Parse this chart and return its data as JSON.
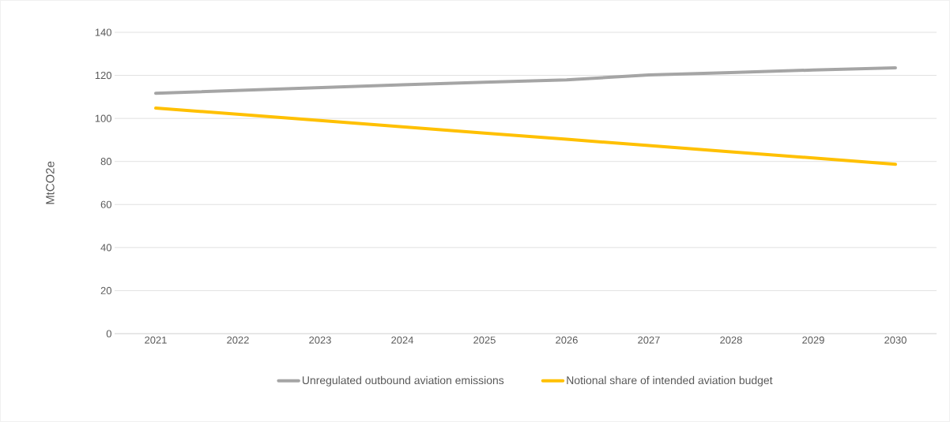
{
  "chart_data": {
    "type": "line",
    "ylabel": "MtCO2e",
    "categories": [
      "2021",
      "2022",
      "2023",
      "2024",
      "2025",
      "2026",
      "2027",
      "2028",
      "2029",
      "2030"
    ],
    "series": [
      {
        "name": "Unregulated outbound aviation emissions",
        "color": "#a5a5a5",
        "values": [
          111.7,
          113,
          114.3,
          115.6,
          116.8,
          117.9,
          120.2,
          121.3,
          122.5,
          123.5
        ]
      },
      {
        "name": "Notional share of intended aviation budget",
        "color": "#ffc000",
        "values": [
          104.8,
          101.9,
          99.0,
          96.1,
          93.2,
          90.3,
          87.4,
          84.5,
          81.6,
          78.7
        ]
      }
    ],
    "ylim": [
      0,
      140
    ],
    "yticks": [
      0,
      20,
      40,
      60,
      80,
      100,
      120,
      140
    ],
    "grid": "y",
    "legend": "bottom",
    "marker": "none",
    "line_style": "solid"
  }
}
